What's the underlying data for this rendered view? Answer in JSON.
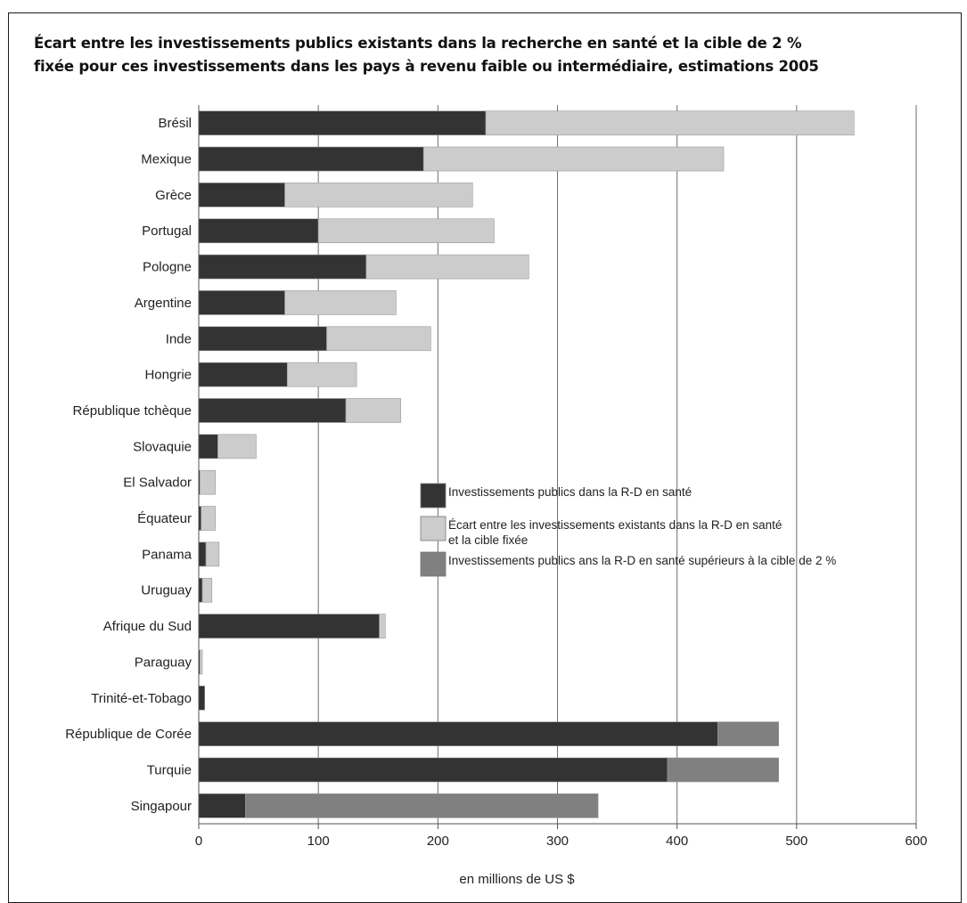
{
  "chart_data": {
    "type": "bar",
    "orientation": "horizontal",
    "stacked": true,
    "title_lines": [
      "Écart entre les investissements publics existants dans la recherche en santé et la cible de 2 %",
      "fixée pour ces investissements dans les pays à revenu faible ou intermédiaire, estimations 2005"
    ],
    "xlabel": "en millions de US $",
    "xlim": [
      0,
      600
    ],
    "xticks": [
      0,
      100,
      200,
      300,
      400,
      500,
      600
    ],
    "grid": "vertical",
    "legend_position": "center-right",
    "categories": [
      "Brésil",
      "Mexique",
      "Grèce",
      "Portugal",
      "Pologne",
      "Argentine",
      "Inde",
      "Hongrie",
      "République tchèque",
      "Slovaquie",
      "El Salvador",
      "Équateur",
      "Panama",
      "Uruguay",
      "Afrique du Sud",
      "Paraguay",
      "Trinité-et-Tobago",
      "République de Corée",
      "Turquie",
      "Singapour"
    ],
    "series": [
      {
        "name": "Investissements publics dans la R-D en santé",
        "color": "#333333",
        "values": [
          240,
          188,
          72,
          100,
          140,
          72,
          107,
          74,
          123,
          16,
          1,
          2,
          6,
          3,
          151,
          1,
          5,
          434,
          392,
          39
        ]
      },
      {
        "name": "Écart entre les investissements existants dans la R-D en santé et la cible fixée",
        "color": "#cccccc",
        "values": [
          308,
          251,
          157,
          147,
          136,
          93,
          87,
          58,
          46,
          32,
          13,
          12,
          11,
          8,
          5,
          2,
          0,
          0,
          0,
          0
        ]
      },
      {
        "name": "Investissements publics ans la R-D en santé supérieurs à la cible de 2 %",
        "color": "#808080",
        "values": [
          0,
          0,
          0,
          0,
          0,
          0,
          0,
          0,
          0,
          0,
          0,
          0,
          0,
          0,
          0,
          0,
          0,
          51,
          93,
          295
        ]
      }
    ],
    "legend": [
      {
        "lines": [
          "Investissements publics dans la R-D en santé"
        ],
        "color": "#333333"
      },
      {
        "lines": [
          "Écart entre les investissements existants dans la R-D en santé",
          "et la cible fixée"
        ],
        "color": "#cccccc"
      },
      {
        "lines": [
          "Investissements publics ans la R-D en santé supérieurs à la cible de 2 %"
        ],
        "color": "#808080"
      }
    ]
  }
}
